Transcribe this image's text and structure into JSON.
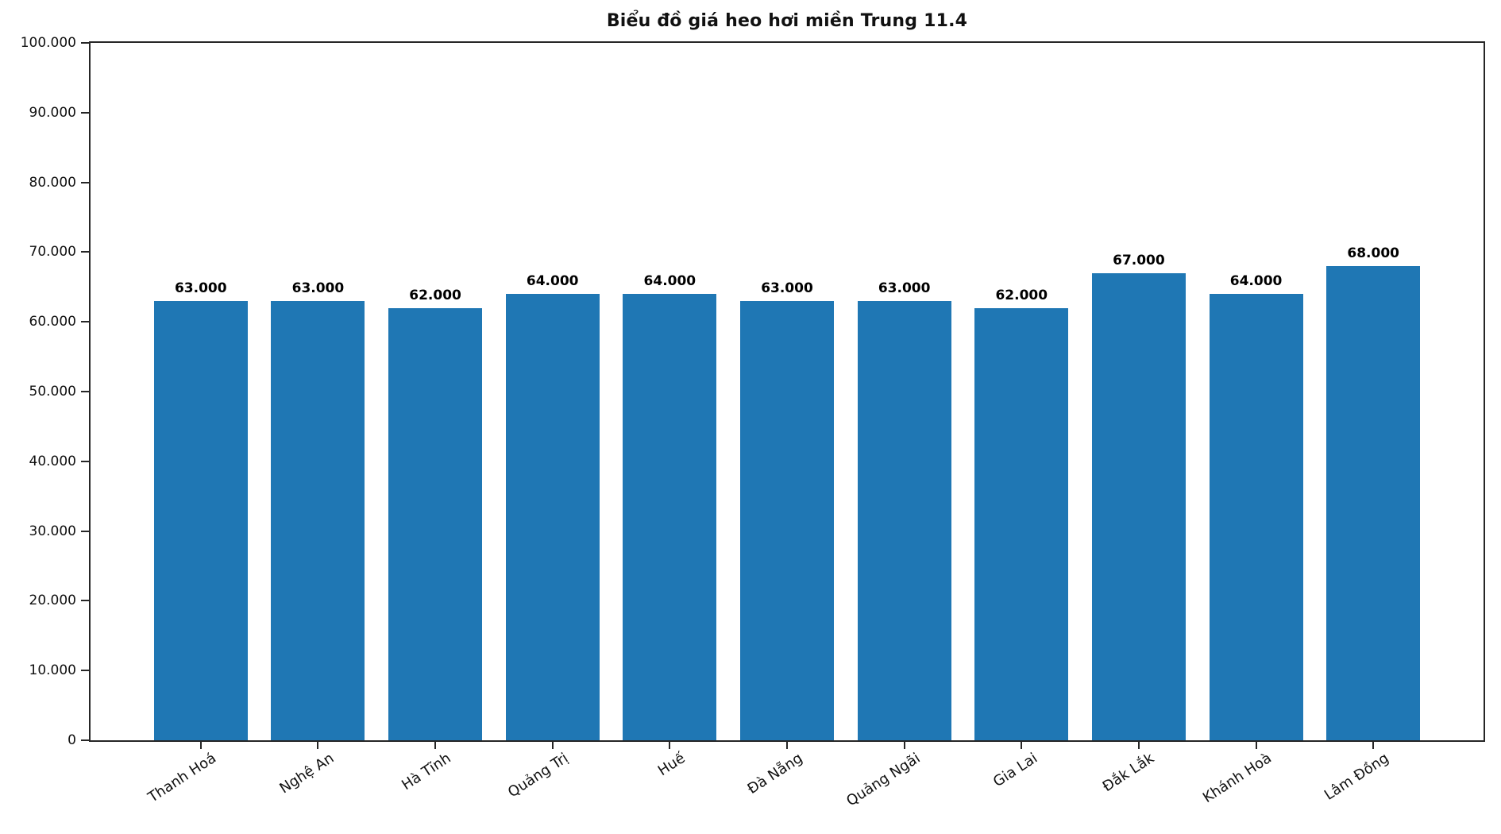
{
  "figure": {
    "title": "Biểu đồ giá heo hơi miền Trung 11.4",
    "background": "#ffffff"
  },
  "chart_data": {
    "type": "bar",
    "title": "Biểu đồ giá heo hơi miền Trung 11.4",
    "categories": [
      "Thanh Hoá",
      "Nghệ An",
      "Hà Tĩnh",
      "Quảng Trị",
      "Huế",
      "Đà Nẵng",
      "Quảng Ngãi",
      "Gia Lai",
      "Đắk Lắk",
      "Khánh Hoà",
      "Lâm Đồng"
    ],
    "values": [
      63000,
      63000,
      62000,
      64000,
      64000,
      63000,
      63000,
      62000,
      67000,
      64000,
      68000
    ],
    "bar_labels": [
      "63.000",
      "63.000",
      "62.000",
      "64.000",
      "64.000",
      "63.000",
      "63.000",
      "62.000",
      "67.000",
      "64.000",
      "68.000"
    ],
    "xlabel": "",
    "ylabel": "",
    "ylim": [
      0,
      100000
    ],
    "yticks": [
      0,
      10000,
      20000,
      30000,
      40000,
      50000,
      60000,
      70000,
      80000,
      90000,
      100000
    ],
    "ytick_labels": [
      "0",
      "10.000",
      "20.000",
      "30.000",
      "40.000",
      "50.000",
      "60.000",
      "70.000",
      "80.000",
      "90.000",
      "100.000"
    ],
    "bar_color": "#1f77b4",
    "axis_color": "#262626",
    "text_color": "#111111",
    "grid": false,
    "legend": null,
    "bar_width_fraction": 0.8,
    "x_margin_units": 0.94,
    "xtick_rotation_deg": 33
  }
}
